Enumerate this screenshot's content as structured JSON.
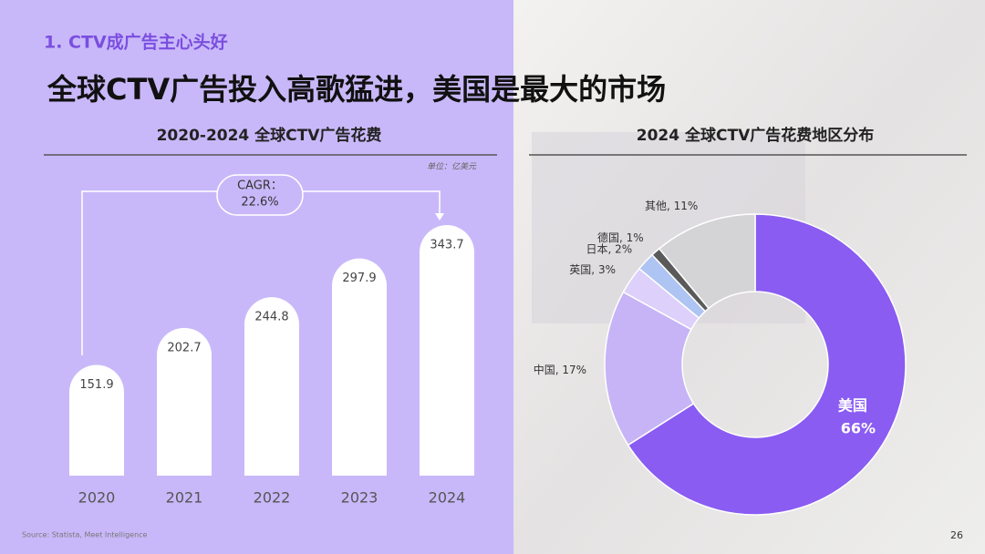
{
  "section": "1. CTV成广告主心头好",
  "headline": "全球CTV广告投入高歌猛进，美国是最大的市场",
  "source": "Source: Statista, Meet Intelligence",
  "page_number": "26",
  "chart_data": [
    {
      "type": "bar",
      "title": "2020-2024 全球CTV广告花费",
      "unit": "单位：亿美元",
      "categories": [
        "2020",
        "2021",
        "2022",
        "2023",
        "2024"
      ],
      "values": [
        151.9,
        202.7,
        244.8,
        297.9,
        343.7
      ],
      "color": "#ffffff",
      "annotation": [
        "CAGR：",
        "22.6%"
      ]
    },
    {
      "type": "pie",
      "title": "2024 全球CTV广告花费地区分布",
      "categories": [
        "美国",
        "中国",
        "英国",
        "日本",
        "德国",
        "其他"
      ],
      "values": [
        66,
        17,
        3,
        2,
        1,
        11
      ],
      "value_labels": [
        "66%",
        "17%",
        "3%",
        "2%",
        "1%",
        "11%"
      ],
      "colors": [
        "#8a5cf2",
        "#c6b4f6",
        "#ddd0fa",
        "#aec4f2",
        "#5a5a5a",
        "#d4d4d6"
      ]
    }
  ]
}
